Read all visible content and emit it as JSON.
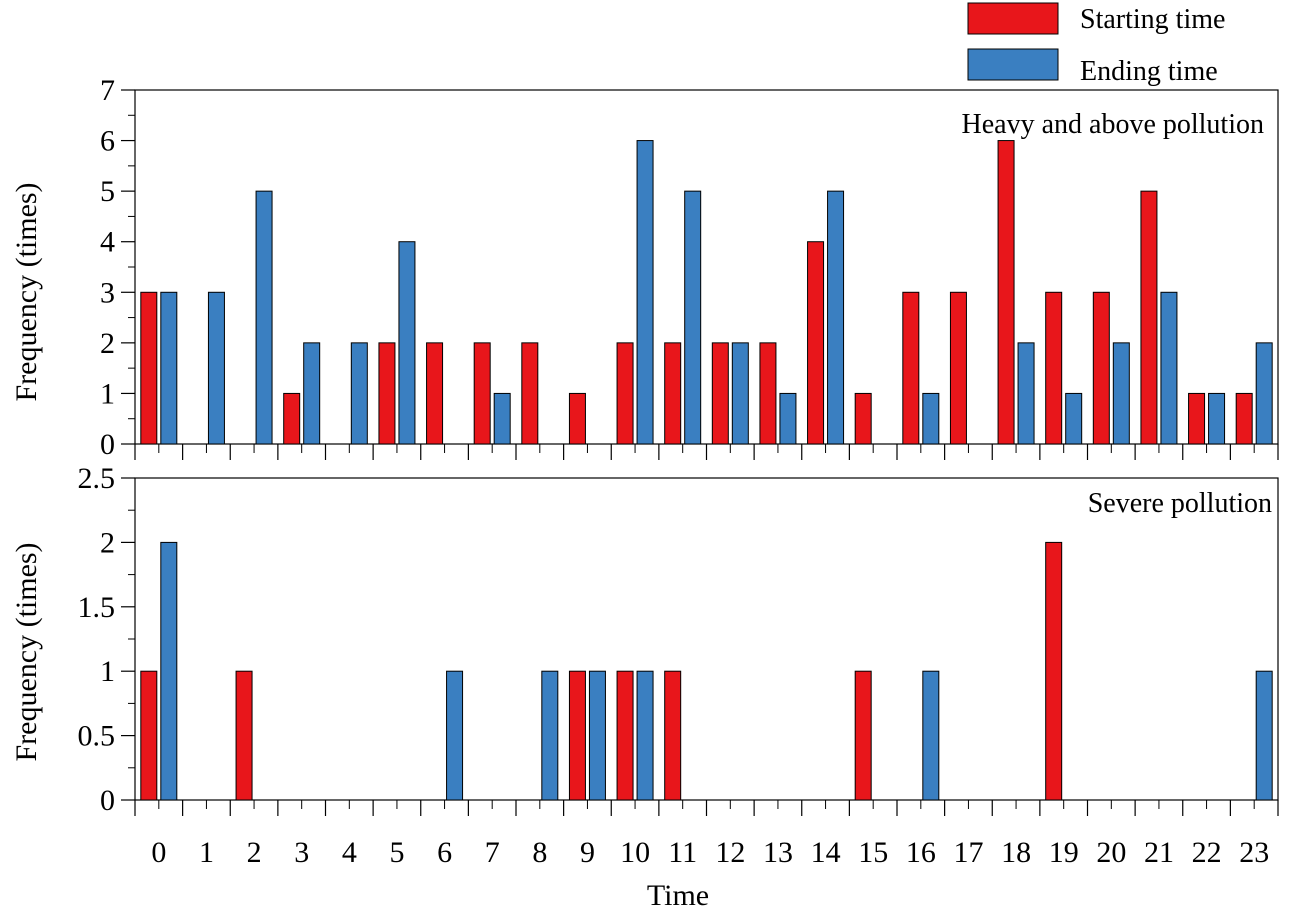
{
  "legend": {
    "placement": "top-right",
    "items": [
      {
        "label": "Starting time",
        "color": "#e8161b"
      },
      {
        "label": "Ending time",
        "color": "#3a7fc1"
      }
    ]
  },
  "xlabel": "Time",
  "chart_data": [
    {
      "type": "bar",
      "annotation": "Heavy and above pollution",
      "ylabel": "Frequency (times)",
      "ylim": [
        0,
        7
      ],
      "yticks": [
        "0",
        "1",
        "2",
        "3",
        "4",
        "5",
        "6",
        "7"
      ],
      "categories": [
        "0",
        "1",
        "2",
        "3",
        "4",
        "5",
        "6",
        "7",
        "8",
        "9",
        "10",
        "11",
        "12",
        "13",
        "14",
        "15",
        "16",
        "17",
        "18",
        "19",
        "20",
        "21",
        "22",
        "23"
      ],
      "series": [
        {
          "name": "Starting time",
          "values": [
            3,
            0,
            0,
            1,
            0,
            2,
            2,
            2,
            2,
            1,
            2,
            2,
            2,
            2,
            4,
            1,
            3,
            3,
            6,
            3,
            3,
            5,
            1,
            1
          ]
        },
        {
          "name": "Ending time",
          "values": [
            3,
            3,
            5,
            2,
            2,
            4,
            0,
            1,
            0,
            0,
            6,
            5,
            2,
            1,
            5,
            0,
            1,
            0,
            2,
            1,
            2,
            3,
            1,
            2
          ]
        }
      ]
    },
    {
      "type": "bar",
      "annotation": "Severe pollution",
      "ylabel": "Frequency (times)",
      "ylim": [
        0,
        2.5
      ],
      "yticks": [
        "0",
        "0.5",
        "1",
        "1.5",
        "2",
        "2.5"
      ],
      "xticks": [
        "0",
        "1",
        "2",
        "3",
        "4",
        "5",
        "6",
        "7",
        "8",
        "9",
        "10",
        "11",
        "12",
        "13",
        "14",
        "15",
        "16",
        "17",
        "18",
        "19",
        "20",
        "21",
        "22",
        "23"
      ],
      "categories": [
        "0",
        "1",
        "2",
        "3",
        "4",
        "5",
        "6",
        "7",
        "8",
        "9",
        "10",
        "11",
        "12",
        "13",
        "14",
        "15",
        "16",
        "17",
        "18",
        "19",
        "20",
        "21",
        "22",
        "23"
      ],
      "series": [
        {
          "name": "Starting time",
          "values": [
            1,
            0,
            1,
            0,
            0,
            0,
            0,
            0,
            0,
            1,
            1,
            1,
            0,
            0,
            0,
            1,
            0,
            0,
            0,
            2,
            0,
            0,
            0,
            0
          ]
        },
        {
          "name": "Ending time",
          "values": [
            2,
            0,
            0,
            0,
            0,
            0,
            1,
            0,
            1,
            1,
            1,
            0,
            0,
            0,
            0,
            0,
            1,
            0,
            0,
            0,
            0,
            0,
            0,
            1
          ]
        }
      ]
    }
  ]
}
